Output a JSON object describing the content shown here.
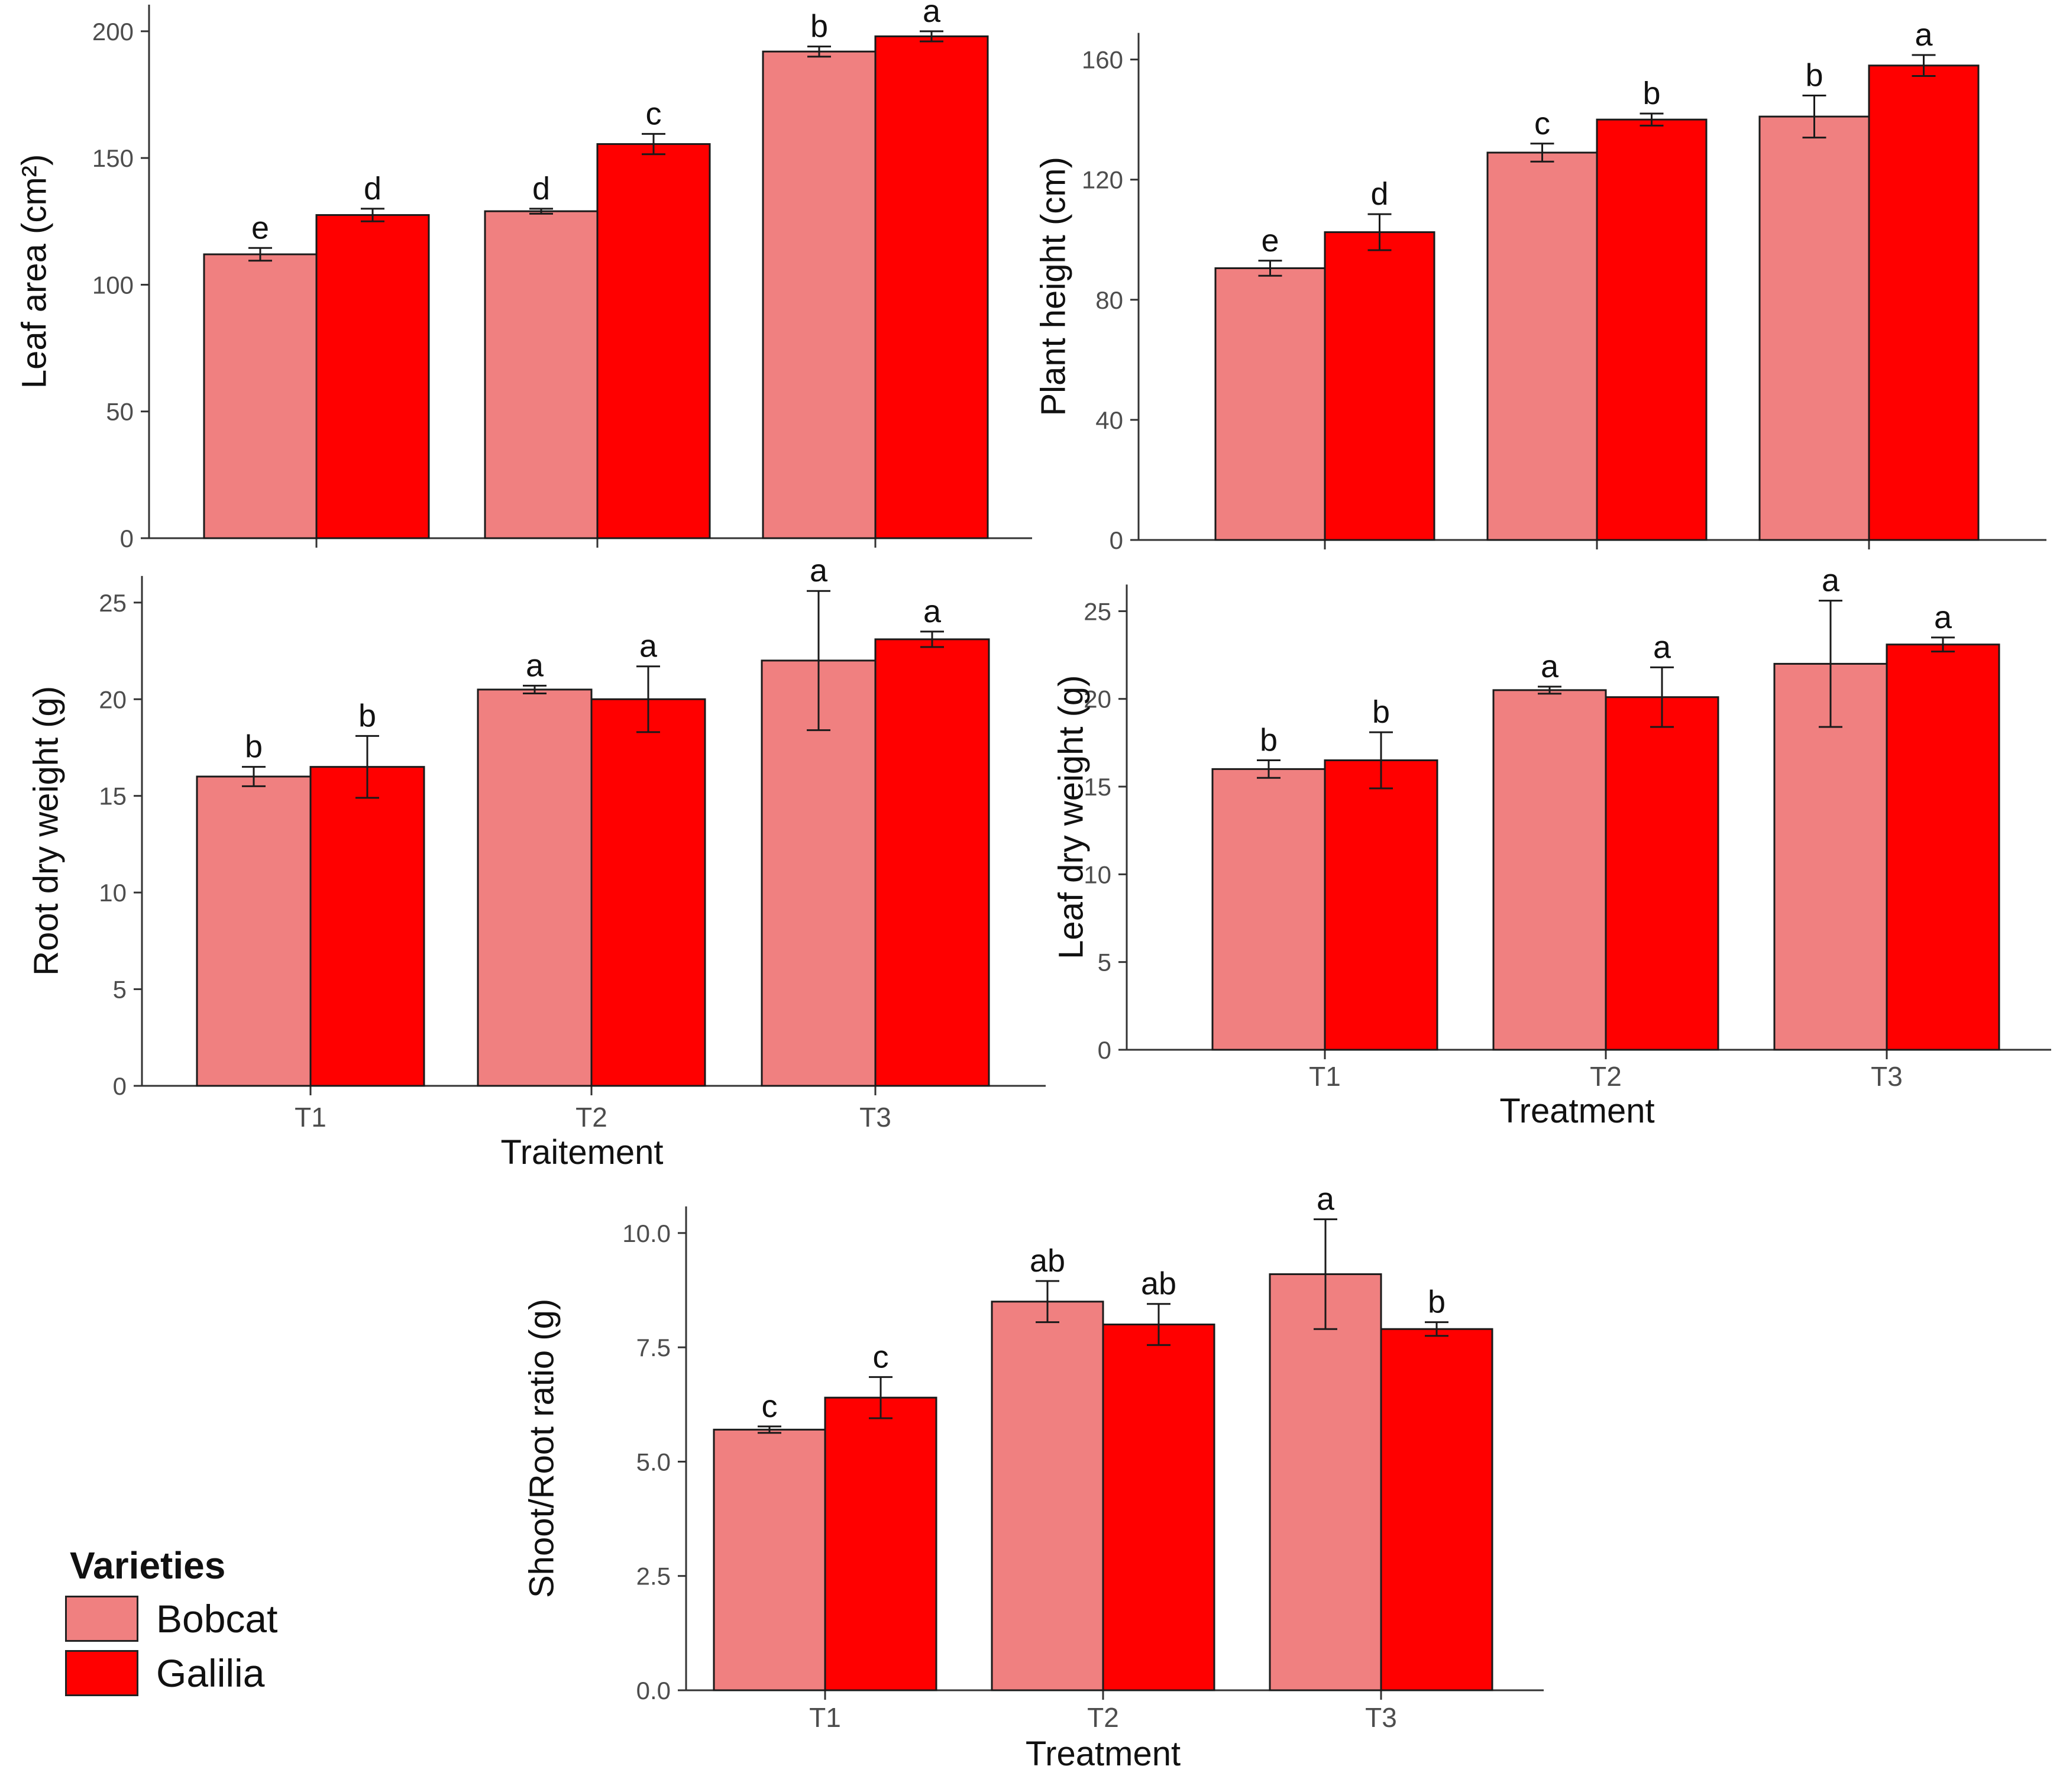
{
  "figure": {
    "series_colors": {
      "Bobcat": "#F08080",
      "Galilia": "#FF0000"
    }
  },
  "legend": {
    "title": "Varieties",
    "entries": [
      {
        "label": "Bobcat",
        "color": "#F08080"
      },
      {
        "label": "Galilia",
        "color": "#FF0000"
      }
    ]
  },
  "chart_data": [
    {
      "type": "bar",
      "ylabel": "Leaf area (cm²)",
      "xlabel": "",
      "categories": [
        "T1",
        "T2",
        "T3"
      ],
      "show_category_labels": false,
      "ylim": [
        0,
        210
      ],
      "yticks": [
        0,
        50,
        100,
        150,
        200
      ],
      "ytick_labels": [
        "0",
        "50",
        "100",
        "150",
        "200"
      ],
      "grid": false,
      "series": [
        {
          "name": "Bobcat",
          "values": [
            112,
            129,
            192
          ],
          "errors": [
            2.5,
            1,
            2
          ],
          "letters": [
            "e",
            "d",
            "b"
          ]
        },
        {
          "name": "Galilia",
          "values": [
            127.5,
            155.5,
            198
          ],
          "errors": [
            2.5,
            4,
            2
          ],
          "letters": [
            "d",
            "c",
            "a"
          ]
        }
      ]
    },
    {
      "type": "bar",
      "ylabel": "Plant height (cm)",
      "xlabel": "",
      "categories": [
        "T1",
        "T2",
        "T3"
      ],
      "show_category_labels": false,
      "ylim": [
        0,
        168
      ],
      "yticks": [
        0,
        40,
        80,
        120,
        160
      ],
      "ytick_labels": [
        "0",
        "40",
        "80",
        "120",
        "160"
      ],
      "grid": false,
      "series": [
        {
          "name": "Bobcat",
          "values": [
            90.5,
            129,
            141
          ],
          "errors": [
            2.5,
            3,
            7
          ],
          "letters": [
            "e",
            "c",
            "b"
          ]
        },
        {
          "name": "Galilia",
          "values": [
            102.5,
            140,
            158
          ],
          "errors": [
            6,
            2,
            3.5
          ],
          "letters": [
            "d",
            "b",
            "a"
          ]
        }
      ]
    },
    {
      "type": "bar",
      "ylabel": "Root dry weight (g)",
      "xlabel": "Traitement",
      "categories": [
        "T1",
        "T2",
        "T3"
      ],
      "show_category_labels": true,
      "ylim": [
        0,
        26.8
      ],
      "yticks": [
        0,
        5,
        10,
        15,
        20,
        25
      ],
      "ytick_labels": [
        "0",
        "5",
        "10",
        "15",
        "20",
        "25"
      ],
      "grid": false,
      "series": [
        {
          "name": "Bobcat",
          "values": [
            16,
            20.5,
            22
          ],
          "errors": [
            0.5,
            0.2,
            3.6
          ],
          "letters": [
            "b",
            "a",
            "a"
          ]
        },
        {
          "name": "Galilia",
          "values": [
            16.5,
            20,
            23.1
          ],
          "errors": [
            1.6,
            1.7,
            0.4
          ],
          "letters": [
            "b",
            "a",
            "a"
          ]
        }
      ]
    },
    {
      "type": "bar",
      "ylabel": "Leaf dry weight (g)",
      "xlabel": "Treatment",
      "categories": [
        "T1",
        "T2",
        "T3"
      ],
      "show_category_labels": true,
      "ylim": [
        0,
        26.8
      ],
      "yticks": [
        0,
        5,
        10,
        15,
        20,
        25
      ],
      "ytick_labels": [
        "0",
        "5",
        "10",
        "15",
        "20",
        "25"
      ],
      "grid": false,
      "series": [
        {
          "name": "Bobcat",
          "values": [
            16,
            20.5,
            22
          ],
          "errors": [
            0.5,
            0.2,
            3.6
          ],
          "letters": [
            "b",
            "a",
            "a"
          ]
        },
        {
          "name": "Galilia",
          "values": [
            16.5,
            20.1,
            23.1
          ],
          "errors": [
            1.6,
            1.7,
            0.4
          ],
          "letters": [
            "b",
            "a",
            "a"
          ]
        }
      ]
    },
    {
      "type": "bar",
      "ylabel": "Shoot/Root ratio (g)",
      "xlabel": "Treatment",
      "categories": [
        "T1",
        "T2",
        "T3"
      ],
      "show_category_labels": true,
      "ylim": [
        0,
        10.8
      ],
      "yticks": [
        0,
        2.5,
        5,
        7.5,
        10
      ],
      "ytick_labels": [
        "0.0",
        "2.5",
        "5.0",
        "7.5",
        "10.0"
      ],
      "grid": false,
      "series": [
        {
          "name": "Bobcat",
          "values": [
            5.7,
            8.5,
            9.1
          ],
          "errors": [
            0.07,
            0.45,
            1.2
          ],
          "letters": [
            "c",
            "ab",
            "a"
          ]
        },
        {
          "name": "Galilia",
          "values": [
            6.4,
            8.0,
            7.9
          ],
          "errors": [
            0.45,
            0.45,
            0.15
          ],
          "letters": [
            "c",
            "ab",
            "b"
          ]
        }
      ]
    }
  ]
}
